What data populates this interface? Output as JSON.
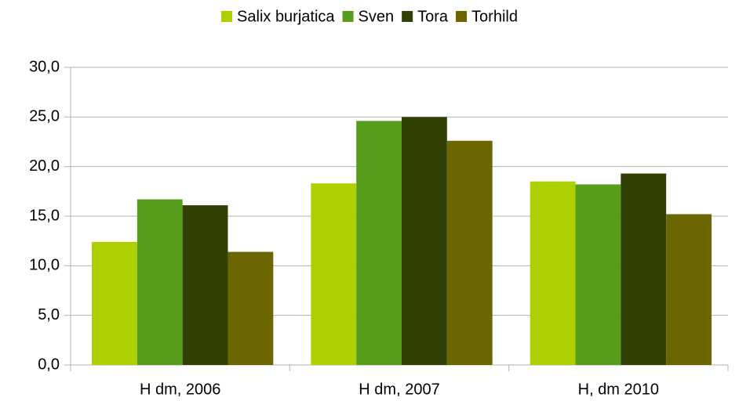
{
  "chart_data": {
    "type": "bar",
    "categories": [
      "H dm, 2006",
      "H dm, 2007",
      "H, dm 2010"
    ],
    "series": [
      {
        "name": "Salix burjatica",
        "color": "#aecf00",
        "values": [
          12.4,
          18.3,
          18.5
        ]
      },
      {
        "name": "Sven",
        "color": "#579d1c",
        "values": [
          16.7,
          24.6,
          18.2
        ]
      },
      {
        "name": "Tora",
        "color": "#314004",
        "values": [
          16.1,
          25.0,
          19.3
        ]
      },
      {
        "name": "Torhild",
        "color": "#6b6600",
        "values": [
          11.4,
          22.6,
          15.2
        ]
      }
    ],
    "ylim": [
      0,
      30
    ],
    "yticks": [
      {
        "value": 0,
        "label": "0,0"
      },
      {
        "value": 5,
        "label": "5,0"
      },
      {
        "value": 10,
        "label": "10,0"
      },
      {
        "value": 15,
        "label": "15,0"
      },
      {
        "value": 20,
        "label": "20,0"
      },
      {
        "value": 25,
        "label": "25,0"
      },
      {
        "value": 30,
        "label": "30,0"
      }
    ],
    "grid": true,
    "legend": "top"
  }
}
